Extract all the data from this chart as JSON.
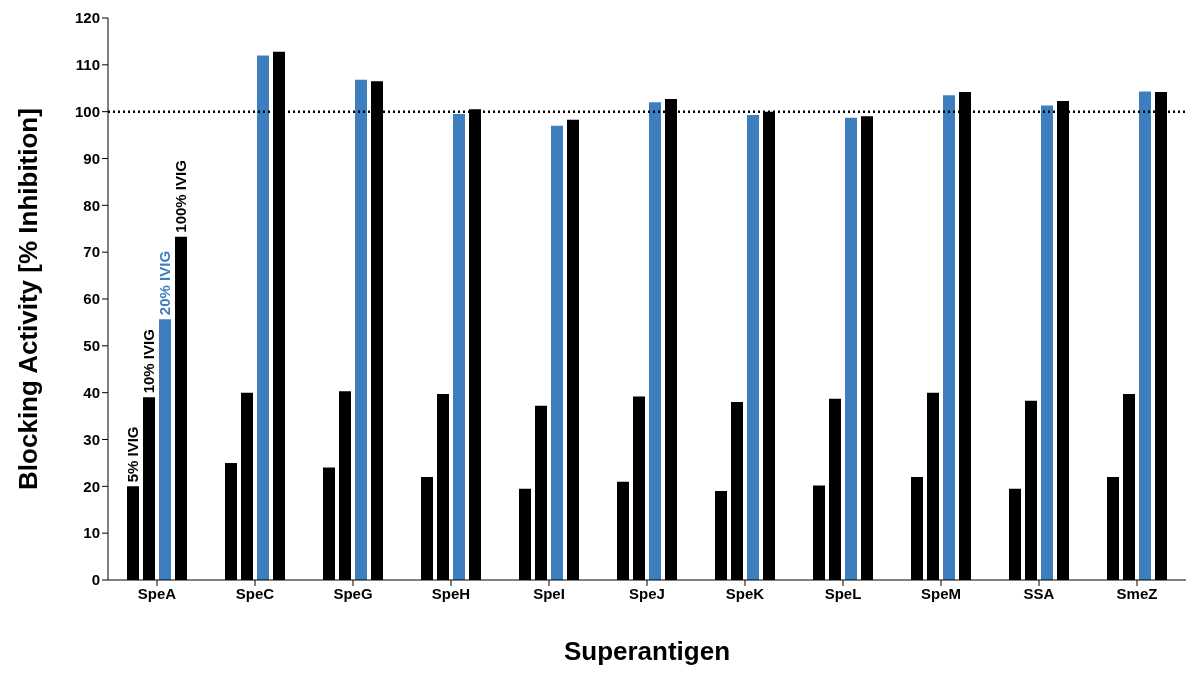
{
  "chart_data": {
    "type": "bar",
    "xlabel": "Superantigen",
    "ylabel": "Blocking Activity [% Inhibition]",
    "categories": [
      "SpeA",
      "SpeC",
      "SpeG",
      "SpeH",
      "SpeI",
      "SpeJ",
      "SpeK",
      "SpeL",
      "SpeM",
      "SSA",
      "SmeZ"
    ],
    "series": [
      {
        "name": "5% IVIG",
        "color": "#000000",
        "values": [
          20,
          25,
          24,
          22,
          19.5,
          21,
          19,
          20.2,
          22,
          19.5,
          22
        ]
      },
      {
        "name": "10% IVIG",
        "color": "#000000",
        "values": [
          39,
          40,
          40.3,
          39.7,
          37.2,
          39.2,
          38,
          38.7,
          40,
          38.3,
          39.7
        ]
      },
      {
        "name": "20% IVIG",
        "color": "#3d7ebf",
        "values": [
          55.7,
          112,
          106.8,
          99.5,
          97,
          102,
          99.3,
          98.7,
          103.5,
          101.3,
          104.3
        ]
      },
      {
        "name": "100% IVIG",
        "color": "#000000",
        "values": [
          73.3,
          112.8,
          106.5,
          100.5,
          98.3,
          102.7,
          100,
          99,
          104.2,
          102.3,
          104.2
        ]
      }
    ],
    "ylim": [
      0,
      120
    ],
    "yticks": [
      0,
      10,
      20,
      30,
      40,
      50,
      60,
      70,
      80,
      90,
      100,
      110,
      120
    ],
    "ref_lines": [
      {
        "axis": "y",
        "value": 100,
        "line_style": "dotted",
        "color": "#000000"
      }
    ],
    "grid": false
  }
}
